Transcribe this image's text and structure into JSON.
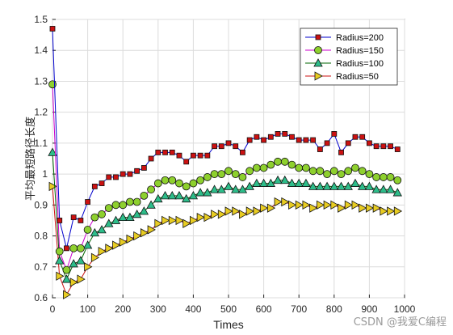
{
  "chart_data": {
    "type": "line",
    "xlabel": "Times",
    "ylabel": "平均最短路径长度",
    "xlim": [
      0,
      1000
    ],
    "ylim": [
      0.6,
      1.5
    ],
    "xticks": [
      0,
      100,
      200,
      300,
      400,
      500,
      600,
      700,
      800,
      900,
      1000
    ],
    "yticks": [
      0.6,
      0.7,
      0.8,
      0.9,
      1.0,
      1.1,
      1.2,
      1.3,
      1.4,
      1.5
    ],
    "xtick_labels": [
      "0",
      "100",
      "200",
      "300",
      "400",
      "500",
      "600",
      "700",
      "800",
      "900",
      "1000"
    ],
    "ytick_labels": [
      "0.6",
      "0.7",
      "0.8",
      "0.9",
      "1",
      "1.1",
      "1.2",
      "1.3",
      "1.4",
      "1.5"
    ],
    "grid": true,
    "legend_position": "top-right",
    "x": [
      0,
      20,
      40,
      60,
      80,
      100,
      120,
      140,
      160,
      180,
      200,
      220,
      240,
      260,
      280,
      300,
      320,
      340,
      360,
      380,
      400,
      420,
      440,
      460,
      480,
      500,
      520,
      540,
      560,
      580,
      600,
      620,
      640,
      660,
      680,
      700,
      720,
      740,
      760,
      780,
      800,
      820,
      840,
      860,
      880,
      900,
      920,
      940,
      960,
      980
    ],
    "series": [
      {
        "name": "Radius=200",
        "color": "#0000cc",
        "marker": "square",
        "marker_fill": "#cc1111",
        "values": [
          1.47,
          0.85,
          0.76,
          0.86,
          0.85,
          0.91,
          0.96,
          0.97,
          0.99,
          0.99,
          1.0,
          1.0,
          1.01,
          1.02,
          1.05,
          1.07,
          1.07,
          1.07,
          1.06,
          1.04,
          1.06,
          1.06,
          1.06,
          1.09,
          1.09,
          1.1,
          1.09,
          1.07,
          1.11,
          1.12,
          1.11,
          1.12,
          1.13,
          1.13,
          1.12,
          1.11,
          1.11,
          1.11,
          1.08,
          1.1,
          1.13,
          1.07,
          1.1,
          1.12,
          1.12,
          1.1,
          1.09,
          1.09,
          1.09,
          1.08
        ]
      },
      {
        "name": "Radius=150",
        "color": "#cc00cc",
        "marker": "circle",
        "marker_fill": "#8ed02e",
        "values": [
          1.29,
          0.75,
          0.69,
          0.76,
          0.76,
          0.82,
          0.86,
          0.87,
          0.89,
          0.9,
          0.9,
          0.91,
          0.91,
          0.93,
          0.95,
          0.97,
          0.98,
          0.98,
          0.97,
          0.96,
          0.97,
          0.98,
          0.99,
          1.0,
          1.0,
          1.01,
          1.0,
          0.99,
          1.01,
          1.02,
          1.02,
          1.03,
          1.04,
          1.04,
          1.03,
          1.02,
          1.02,
          1.01,
          1.01,
          1.0,
          1.01,
          1.0,
          1.01,
          1.02,
          1.01,
          1.0,
          0.99,
          0.99,
          0.99,
          0.98
        ]
      },
      {
        "name": "Radius=100",
        "color": "#006400",
        "marker": "triangle-up",
        "marker_fill": "#2dbd8a",
        "values": [
          1.07,
          0.72,
          0.66,
          0.71,
          0.72,
          0.77,
          0.81,
          0.82,
          0.84,
          0.85,
          0.86,
          0.86,
          0.87,
          0.88,
          0.9,
          0.92,
          0.93,
          0.93,
          0.93,
          0.92,
          0.93,
          0.94,
          0.94,
          0.95,
          0.95,
          0.96,
          0.95,
          0.95,
          0.96,
          0.97,
          0.97,
          0.97,
          0.98,
          0.98,
          0.97,
          0.97,
          0.97,
          0.96,
          0.96,
          0.96,
          0.96,
          0.96,
          0.96,
          0.97,
          0.96,
          0.96,
          0.95,
          0.95,
          0.95,
          0.94
        ]
      },
      {
        "name": "Radius=50",
        "color": "#cc1111",
        "marker": "triangle-right",
        "marker_fill": "#e8cc22",
        "values": [
          0.96,
          0.67,
          0.61,
          0.65,
          0.66,
          0.7,
          0.73,
          0.75,
          0.76,
          0.77,
          0.78,
          0.79,
          0.8,
          0.81,
          0.82,
          0.84,
          0.85,
          0.85,
          0.85,
          0.84,
          0.85,
          0.86,
          0.86,
          0.87,
          0.87,
          0.88,
          0.88,
          0.87,
          0.88,
          0.88,
          0.89,
          0.89,
          0.91,
          0.91,
          0.9,
          0.9,
          0.9,
          0.89,
          0.9,
          0.9,
          0.9,
          0.89,
          0.9,
          0.9,
          0.89,
          0.89,
          0.89,
          0.88,
          0.88,
          0.88
        ]
      }
    ]
  },
  "watermark": "CSDN @我爱C编程"
}
